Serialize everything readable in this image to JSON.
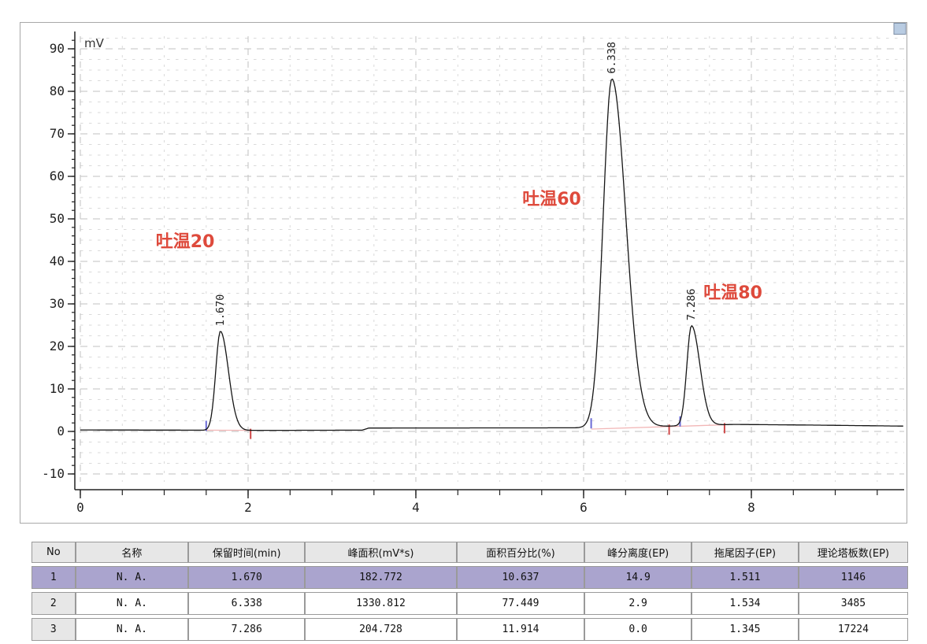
{
  "colors": {
    "trace": "#151515",
    "axis": "#222222",
    "grid_minor": "#dadada",
    "grid_major": "#c2c2c2",
    "annotation_red": "#de4a3c",
    "peak_start_marker_blue": "#6b6bd6",
    "peak_end_marker_red": "#cf4848",
    "integration_baseline_pink": "#f2b6b6",
    "selected_row_bg": "#aaa4ce",
    "table_header_bg": "#e7e7e7",
    "table_border": "#9a9a9a",
    "corner_handle_fill": "#b9cce2",
    "corner_handle_edge": "#7d8ea6",
    "frame": "#a8a8a8"
  },
  "chart_data": {
    "type": "line",
    "title": "",
    "xlabel": "",
    "ylabel": "mV",
    "unit_label": "mV",
    "xlim": [
      0,
      9.82
    ],
    "ylim": [
      -10,
      90
    ],
    "x_major_ticks": [
      0,
      2,
      4,
      6,
      8
    ],
    "x_minor_tick_step": 0.5,
    "y_major_ticks": [
      -10,
      0,
      10,
      20,
      30,
      40,
      50,
      60,
      70,
      80,
      90
    ],
    "y_minor_tick_step": 2,
    "grid": "dashed",
    "legend": "none",
    "peaks": [
      {
        "rt": 1.67,
        "rt_label": "1.670",
        "height_mv": 23.3,
        "sigma_left": 0.055,
        "sigma_right": 0.095,
        "start_t": 1.5,
        "end_t": 2.03
      },
      {
        "rt": 6.338,
        "rt_label": "6.338",
        "height_mv": 82.0,
        "sigma_left": 0.105,
        "sigma_right": 0.165,
        "start_t": 6.09,
        "end_t": 7.02
      },
      {
        "rt": 7.286,
        "rt_label": "7.286",
        "height_mv": 23.5,
        "sigma_left": 0.055,
        "sigma_right": 0.1,
        "start_t": 7.15,
        "end_t": 7.68
      }
    ],
    "baseline_points": [
      [
        0,
        0.35
      ],
      [
        1.35,
        0.3
      ],
      [
        2.1,
        0.25
      ],
      [
        3.36,
        0.3
      ],
      [
        3.44,
        0.8
      ],
      [
        5.95,
        0.85
      ],
      [
        6.6,
        1.0
      ],
      [
        7.1,
        1.3
      ],
      [
        7.8,
        1.65
      ],
      [
        8.7,
        1.5
      ],
      [
        9.82,
        1.25
      ]
    ],
    "integration_segments": [
      {
        "start_t": 1.5,
        "start_mv": 0.3,
        "end_t": 2.03,
        "end_mv": 0.25
      },
      {
        "start_t": 6.09,
        "start_mv": 0.55,
        "end_t": 7.68,
        "end_mv": 1.55
      }
    ],
    "annotations": [
      {
        "text": "吐温20",
        "t": 1.25,
        "mv": 44.8
      },
      {
        "text": "吐温60",
        "t": 5.62,
        "mv": 54.8
      },
      {
        "text": "吐温80",
        "t": 7.78,
        "mv": 32.8
      }
    ]
  },
  "table": {
    "columns": [
      "No",
      "名称",
      "保留时间(min)",
      "峰面积(mV*s)",
      "面积百分比(%)",
      "峰分离度(EP)",
      "拖尾因子(EP)",
      "理论塔板数(EP)"
    ],
    "rows": [
      [
        "1",
        "N. A.",
        "1.670",
        "182.772",
        "10.637",
        "14.9",
        "1.511",
        "1146"
      ],
      [
        "2",
        "N. A.",
        "6.338",
        "1330.812",
        "77.449",
        "2.9",
        "1.534",
        "3485"
      ],
      [
        "3",
        "N. A.",
        "7.286",
        "204.728",
        "11.914",
        "0.0",
        "1.345",
        "17224"
      ]
    ],
    "selected_row_index": 0
  }
}
